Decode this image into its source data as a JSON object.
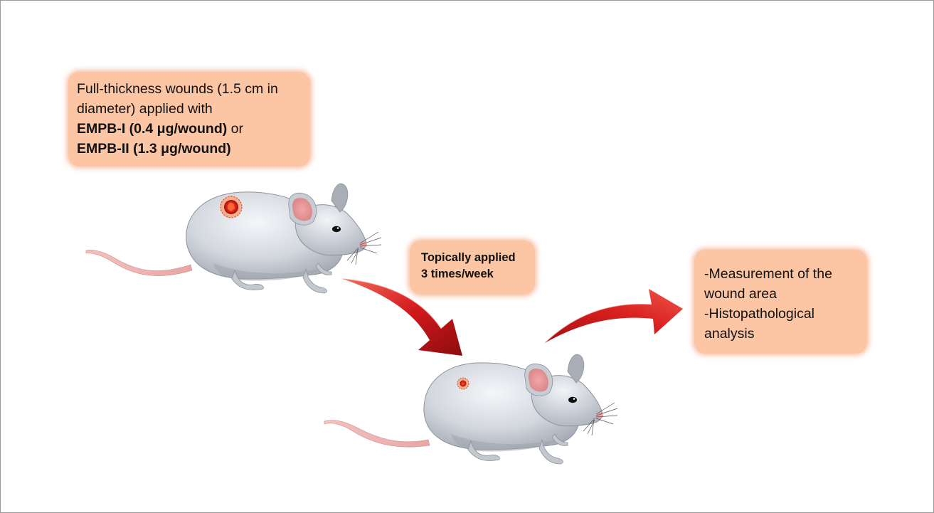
{
  "steps": {
    "wound_box": {
      "line1": "Full-thickness wounds (1.5 cm in",
      "line2": "diameter) applied with",
      "line3_bold": "EMPB-I (0.4 μg/wound)",
      "line3_tail": " or",
      "line4_bold": "EMPB-II (1.3 μg/wound)"
    },
    "application_box": {
      "line1": "Topically applied",
      "line2": "3 times/week"
    },
    "outcome_box": {
      "line1": "-Measurement of the",
      "line2": "wound area",
      "line3": "-Histopathological",
      "line4": "analysis"
    }
  },
  "icons": [
    "mouse-large-icon",
    "wound-large-icon",
    "mouse-small-icon",
    "wound-small-icon",
    "arrow-down-right-icon",
    "arrow-up-right-icon"
  ],
  "colors": {
    "box_fill": "#fcc6a4",
    "box_glow": "#f0966e",
    "arrow_red": "#c8161b",
    "mouse_body": "#c9ced6",
    "wound_red": "#e0301e"
  }
}
